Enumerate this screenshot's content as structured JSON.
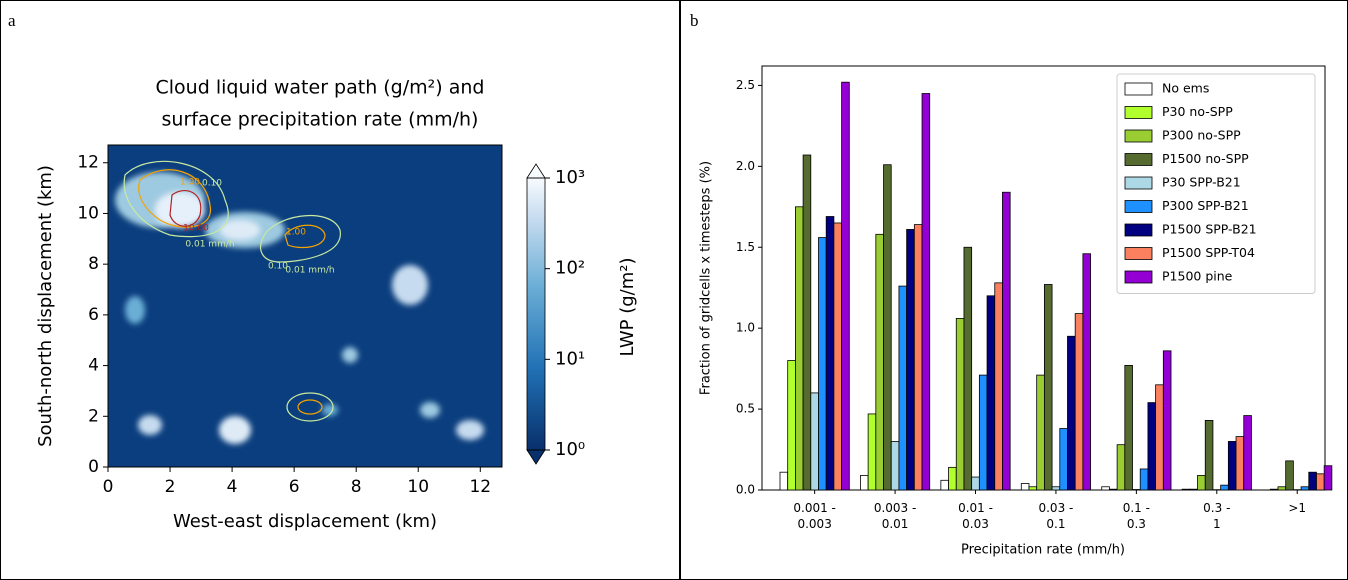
{
  "chart_data": [
    {
      "type": "contour",
      "panel_label": "a",
      "title": [
        "Cloud liquid water path (g/m²) and",
        "surface precipitation rate (mm/h)"
      ],
      "xlabel": "West-east displacement (km)",
      "ylabel": "South-north displacement (km)",
      "xlim": [
        0,
        12.7
      ],
      "xticks": [
        0,
        2,
        4,
        6,
        8,
        10,
        12
      ],
      "ylim": [
        0,
        12.7
      ],
      "yticks": [
        0,
        2,
        4,
        6,
        8,
        10,
        12
      ],
      "colorbar": {
        "label": "LWP (g/m²)",
        "lim": [
          1,
          1000
        ],
        "scale": "log",
        "ticks": [
          {
            "value": 1,
            "label": "10⁰"
          },
          {
            "value": 10,
            "label": "10¹"
          },
          {
            "value": 100,
            "label": "10²"
          },
          {
            "value": 1000,
            "label": "10³"
          }
        ]
      },
      "contour_labels": [
        "1.00",
        "0.10",
        "10.00",
        "0.01 mm/h",
        "1.00",
        "0.10",
        "0.01 mm/h"
      ]
    },
    {
      "type": "bar",
      "panel_label": "b",
      "xlabel": "Precipitation rate (mm/h)",
      "ylabel": "Fraction of gridcells x timesteps (%)",
      "categories": [
        "0.001 -\n0.003",
        "0.003 -\n0.01",
        "0.01 -\n0.03",
        "0.03 -\n0.1",
        "0.1 -\n0.3",
        "0.3 -\n1",
        ">1"
      ],
      "ylim": [
        0,
        2.62
      ],
      "yticks": [
        {
          "value": 0,
          "label": "0.0"
        },
        0.5,
        {
          "value": 1,
          "label": "1.0"
        },
        1.5,
        {
          "value": 2,
          "label": "2.0"
        },
        2.5
      ],
      "legend": "upper right",
      "series": [
        {
          "name": "No ems",
          "color": "#ffffff",
          "values": [
            0.11,
            0.09,
            0.06,
            0.04,
            0.02,
            0.005,
            0.0
          ]
        },
        {
          "name": "P30 no-SPP",
          "color": "#b2ff2e",
          "values": [
            0.8,
            0.47,
            0.14,
            0.02,
            0.005,
            0.005,
            0.005
          ]
        },
        {
          "name": "P300 no-SPP",
          "color": "#9acd32",
          "values": [
            1.75,
            1.58,
            1.06,
            0.71,
            0.28,
            0.09,
            0.02
          ]
        },
        {
          "name": "P1500 no-SPP",
          "color": "#556b2f",
          "values": [
            2.07,
            2.01,
            1.5,
            1.27,
            0.77,
            0.43,
            0.18
          ]
        },
        {
          "name": "P30 SPP-B21",
          "color": "#add8e6",
          "values": [
            0.6,
            0.3,
            0.08,
            0.02,
            0.003,
            0.002,
            0.002
          ]
        },
        {
          "name": "P300 SPP-B21",
          "color": "#1e90ff",
          "values": [
            1.56,
            1.26,
            0.71,
            0.38,
            0.13,
            0.03,
            0.02
          ]
        },
        {
          "name": "P1500 SPP-B21",
          "color": "#000080",
          "values": [
            1.69,
            1.61,
            1.2,
            0.95,
            0.54,
            0.3,
            0.11
          ]
        },
        {
          "name": "P1500 SPP-T04",
          "color": "#fa8060",
          "values": [
            1.65,
            1.64,
            1.28,
            1.09,
            0.65,
            0.33,
            0.1
          ]
        },
        {
          "name": "P1500 pine",
          "color": "#9400d3",
          "values": [
            2.52,
            2.45,
            1.84,
            1.46,
            0.86,
            0.46,
            0.15
          ]
        }
      ]
    }
  ]
}
